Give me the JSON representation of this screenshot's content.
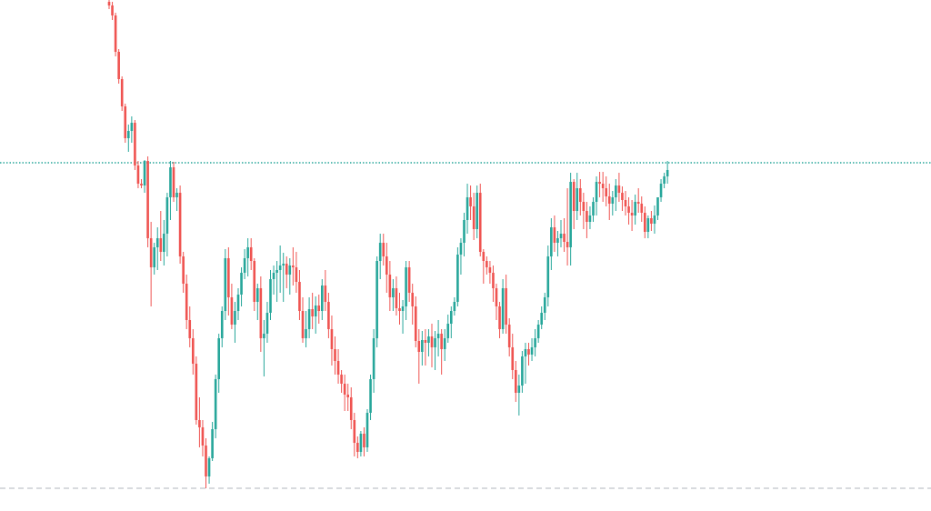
{
  "colors": {
    "up": "#26a69a",
    "down": "#ef5350",
    "price_line": "#26a69a",
    "low_line": "#b2b5be",
    "background": "#ffffff"
  },
  "chart_data": {
    "type": "candlestick",
    "ylim": [
      0,
      562
    ],
    "x_start": 120,
    "x_step": 3.55,
    "reference_lines": [
      {
        "role": "current-price-line",
        "value": 383,
        "style": "dotted"
      },
      {
        "role": "low-level-line",
        "value": 25,
        "style": "dashed"
      }
    ],
    "ohlc": [
      [
        560,
        562,
        552,
        556
      ],
      [
        556,
        560,
        540,
        545
      ],
      [
        545,
        548,
        500,
        505
      ],
      [
        505,
        508,
        470,
        475
      ],
      [
        475,
        478,
        440,
        445
      ],
      [
        445,
        448,
        405,
        410
      ],
      [
        410,
        425,
        395,
        418
      ],
      [
        418,
        434,
        405,
        427
      ],
      [
        427,
        430,
        375,
        380
      ],
      [
        380,
        385,
        355,
        360
      ],
      [
        360,
        365,
        355,
        358
      ],
      [
        358,
        386,
        350,
        385
      ],
      [
        385,
        390,
        290,
        300
      ],
      [
        300,
        318,
        225,
        268
      ],
      [
        268,
        295,
        260,
        290
      ],
      [
        290,
        312,
        265,
        300
      ],
      [
        300,
        330,
        275,
        285
      ],
      [
        285,
        320,
        270,
        305
      ],
      [
        305,
        350,
        280,
        345
      ],
      [
        345,
        385,
        320,
        378
      ],
      [
        378,
        384,
        340,
        345
      ],
      [
        345,
        355,
        330,
        350
      ],
      [
        350,
        358,
        272,
        280
      ],
      [
        280,
        285,
        240,
        250
      ],
      [
        250,
        260,
        200,
        210
      ],
      [
        210,
        225,
        180,
        190
      ],
      [
        190,
        200,
        150,
        162
      ],
      [
        162,
        170,
        95,
        100
      ],
      [
        100,
        125,
        70,
        92
      ],
      [
        92,
        100,
        60,
        72
      ],
      [
        72,
        80,
        25,
        38
      ],
      [
        38,
        60,
        30,
        58
      ],
      [
        58,
        98,
        55,
        90
      ],
      [
        90,
        150,
        80,
        145
      ],
      [
        145,
        195,
        130,
        190
      ],
      [
        190,
        225,
        180,
        220
      ],
      [
        220,
        288,
        210,
        278
      ],
      [
        278,
        290,
        215,
        235
      ],
      [
        235,
        250,
        200,
        205
      ],
      [
        205,
        230,
        185,
        220
      ],
      [
        220,
        245,
        210,
        238
      ],
      [
        238,
        268,
        225,
        262
      ],
      [
        262,
        288,
        255,
        278
      ],
      [
        278,
        300,
        258,
        290
      ],
      [
        290,
        300,
        265,
        275
      ],
      [
        275,
        278,
        220,
        230
      ],
      [
        230,
        250,
        210,
        245
      ],
      [
        245,
        258,
        175,
        190
      ],
      [
        190,
        210,
        148,
        195
      ],
      [
        195,
        230,
        185,
        218
      ],
      [
        218,
        265,
        210,
        255
      ],
      [
        255,
        270,
        238,
        262
      ],
      [
        262,
        275,
        230,
        265
      ],
      [
        265,
        292,
        240,
        270
      ],
      [
        270,
        284,
        230,
        272
      ],
      [
        272,
        280,
        245,
        260
      ],
      [
        260,
        278,
        238,
        270
      ],
      [
        270,
        290,
        248,
        268
      ],
      [
        268,
        285,
        240,
        252
      ],
      [
        252,
        265,
        210,
        220
      ],
      [
        220,
        235,
        185,
        190
      ],
      [
        190,
        220,
        180,
        200
      ],
      [
        200,
        235,
        190,
        222
      ],
      [
        222,
        240,
        200,
        214
      ],
      [
        214,
        236,
        195,
        226
      ],
      [
        226,
        238,
        206,
        220
      ],
      [
        220,
        255,
        210,
        248
      ],
      [
        248,
        265,
        220,
        230
      ],
      [
        230,
        240,
        190,
        200
      ],
      [
        200,
        215,
        160,
        178
      ],
      [
        178,
        192,
        150,
        165
      ],
      [
        165,
        178,
        140,
        150
      ],
      [
        150,
        155,
        130,
        140
      ],
      [
        140,
        150,
        110,
        128
      ],
      [
        128,
        140,
        110,
        125
      ],
      [
        125,
        136,
        90,
        100
      ],
      [
        100,
        108,
        60,
        75
      ],
      [
        75,
        82,
        58,
        65
      ],
      [
        65,
        88,
        60,
        85
      ],
      [
        85,
        92,
        60,
        70
      ],
      [
        70,
        112,
        65,
        108
      ],
      [
        108,
        150,
        100,
        145
      ],
      [
        145,
        200,
        130,
        190
      ],
      [
        190,
        280,
        180,
        275
      ],
      [
        275,
        305,
        255,
        295
      ],
      [
        295,
        305,
        270,
        280
      ],
      [
        280,
        295,
        240,
        260
      ],
      [
        260,
        275,
        220,
        235
      ],
      [
        235,
        255,
        220,
        245
      ],
      [
        245,
        258,
        215,
        223
      ],
      [
        223,
        240,
        205,
        220
      ],
      [
        220,
        232,
        195,
        225
      ],
      [
        225,
        275,
        210,
        268
      ],
      [
        268,
        275,
        230,
        240
      ],
      [
        240,
        250,
        205,
        225
      ],
      [
        225,
        236,
        180,
        187
      ],
      [
        187,
        200,
        140,
        175
      ],
      [
        175,
        198,
        160,
        188
      ],
      [
        188,
        200,
        160,
        185
      ],
      [
        185,
        200,
        170,
        192
      ],
      [
        192,
        206,
        158,
        180
      ],
      [
        180,
        198,
        155,
        190
      ],
      [
        190,
        210,
        170,
        195
      ],
      [
        195,
        200,
        150,
        178
      ],
      [
        178,
        200,
        165,
        190
      ],
      [
        190,
        216,
        185,
        206
      ],
      [
        206,
        225,
        190,
        220
      ],
      [
        220,
        235,
        215,
        230
      ],
      [
        230,
        290,
        225,
        282
      ],
      [
        282,
        300,
        260,
        295
      ],
      [
        295,
        328,
        280,
        320
      ],
      [
        320,
        360,
        305,
        345
      ],
      [
        345,
        358,
        320,
        335
      ],
      [
        335,
        350,
        298,
        310
      ],
      [
        310,
        358,
        300,
        350
      ],
      [
        350,
        360,
        280,
        285
      ],
      [
        285,
        288,
        250,
        275
      ],
      [
        275,
        280,
        260,
        268
      ],
      [
        268,
        275,
        250,
        262
      ],
      [
        262,
        270,
        230,
        245
      ],
      [
        245,
        250,
        210,
        225
      ],
      [
        225,
        230,
        190,
        200
      ],
      [
        200,
        255,
        195,
        245
      ],
      [
        245,
        260,
        195,
        205
      ],
      [
        205,
        212,
        170,
        180
      ],
      [
        180,
        195,
        145,
        155
      ],
      [
        155,
        165,
        120,
        130
      ],
      [
        130,
        150,
        105,
        138
      ],
      [
        138,
        176,
        130,
        170
      ],
      [
        170,
        185,
        140,
        178
      ],
      [
        178,
        185,
        160,
        172
      ],
      [
        172,
        190,
        165,
        180
      ],
      [
        180,
        200,
        170,
        190
      ],
      [
        190,
        210,
        185,
        205
      ],
      [
        205,
        225,
        200,
        218
      ],
      [
        218,
        240,
        210,
        235
      ],
      [
        235,
        292,
        225,
        280
      ],
      [
        280,
        322,
        265,
        312
      ],
      [
        312,
        325,
        285,
        295
      ],
      [
        295,
        308,
        280,
        300
      ],
      [
        300,
        320,
        290,
        305
      ],
      [
        305,
        322,
        285,
        296
      ],
      [
        296,
        355,
        270,
        290
      ],
      [
        290,
        372,
        270,
        362
      ],
      [
        362,
        365,
        310,
        330
      ],
      [
        330,
        372,
        320,
        355
      ],
      [
        355,
        365,
        325,
        340
      ],
      [
        340,
        350,
        310,
        330
      ],
      [
        330,
        340,
        300,
        318
      ],
      [
        318,
        335,
        310,
        325
      ],
      [
        325,
        345,
        318,
        340
      ],
      [
        340,
        368,
        325,
        362
      ],
      [
        362,
        373,
        345,
        360
      ],
      [
        360,
        373,
        340,
        355
      ],
      [
        355,
        368,
        335,
        346
      ],
      [
        346,
        360,
        320,
        338
      ],
      [
        338,
        352,
        325,
        345
      ],
      [
        345,
        365,
        330,
        358
      ],
      [
        358,
        372,
        340,
        350
      ],
      [
        350,
        357,
        330,
        342
      ],
      [
        342,
        352,
        325,
        335
      ],
      [
        335,
        345,
        315,
        328
      ],
      [
        328,
        342,
        308,
        325
      ],
      [
        325,
        348,
        315,
        340
      ],
      [
        340,
        355,
        328,
        338
      ],
      [
        338,
        346,
        318,
        328
      ],
      [
        328,
        335,
        300,
        307
      ],
      [
        307,
        325,
        300,
        322
      ],
      [
        322,
        330,
        308,
        316
      ],
      [
        316,
        336,
        305,
        325
      ],
      [
        325,
        345,
        320,
        345
      ],
      [
        345,
        365,
        340,
        360
      ],
      [
        360,
        372,
        355,
        368
      ],
      [
        368,
        385,
        360,
        375
      ]
    ]
  }
}
